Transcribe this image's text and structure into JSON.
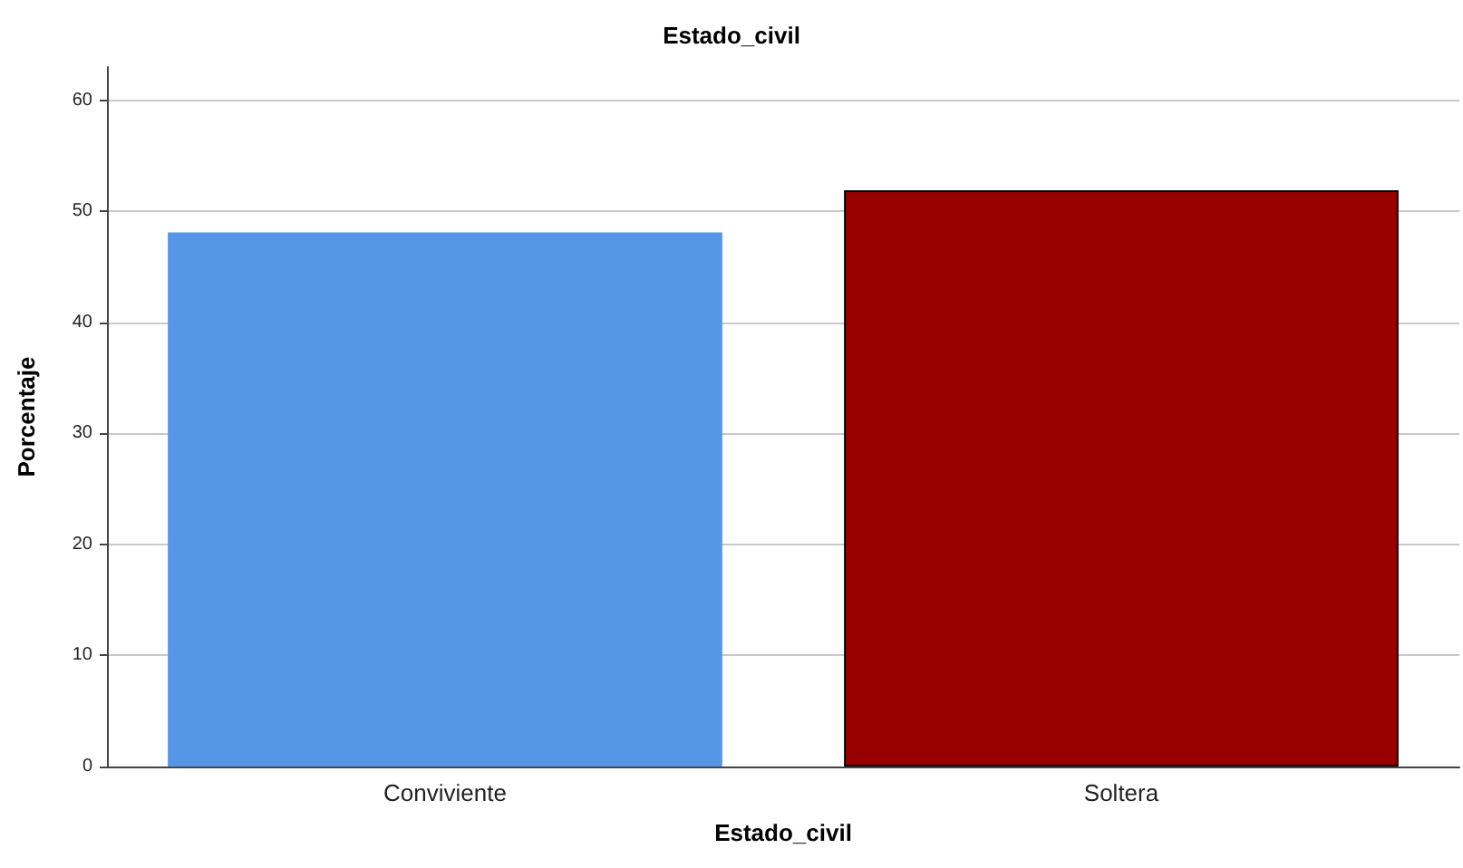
{
  "chart_data": {
    "type": "bar",
    "title": "Estado_civil",
    "xlabel": "Estado_civil",
    "ylabel": "Porcentaje",
    "categories": [
      "Conviviente",
      "Soltera"
    ],
    "values": [
      48.1,
      51.9
    ],
    "colors": [
      "#5596e6",
      "#990000"
    ],
    "ylim": [
      0,
      63
    ],
    "yticks": [
      0,
      10,
      20,
      30,
      40,
      50,
      60
    ],
    "grid": "y"
  }
}
